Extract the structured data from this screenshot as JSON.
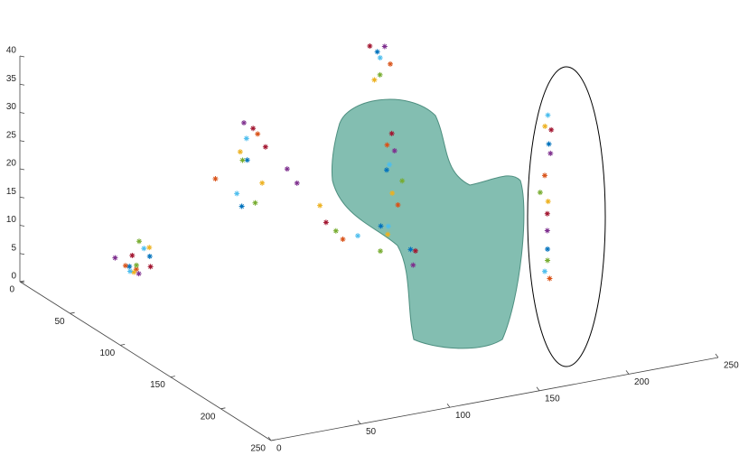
{
  "chart_data": {
    "type": "scatter3d",
    "xlim": [
      0,
      250
    ],
    "ylim": [
      0,
      250
    ],
    "zlim": [
      0,
      40
    ],
    "xticks": [
      0,
      50,
      100,
      150,
      200,
      250
    ],
    "yticks": [
      0,
      50,
      100,
      150,
      200,
      250
    ],
    "zticks": [
      0,
      5,
      10,
      15,
      20,
      25,
      30,
      35,
      40
    ],
    "series": [
      {
        "color": "#0072BD",
        "x": [
          50,
          58,
          207,
          204,
          150,
          160,
          85,
          78,
          165,
          140
        ],
        "y": [
          20,
          26,
          158,
          162,
          98,
          104,
          75,
          82,
          62,
          110
        ],
        "z": [
          2,
          4,
          30,
          12,
          22,
          8,
          25,
          18,
          38,
          14
        ]
      },
      {
        "color": "#D95319",
        "x": [
          45,
          55,
          203,
          208,
          148,
          158,
          88,
          70,
          170,
          130
        ],
        "y": [
          25,
          18,
          161,
          157,
          102,
          95,
          80,
          70,
          66,
          90
        ],
        "z": [
          3,
          1,
          25,
          6,
          27,
          15,
          30,
          22,
          36,
          10
        ]
      },
      {
        "color": "#EDB120",
        "x": [
          60,
          48,
          206,
          202,
          152,
          145,
          76,
          95,
          160,
          120
        ],
        "y": [
          22,
          28,
          159,
          163,
          100,
          108,
          84,
          72,
          68,
          85
        ],
        "z": [
          5,
          2,
          20,
          34,
          18,
          12,
          28,
          20,
          34,
          16
        ]
      },
      {
        "color": "#7E2F8E",
        "x": [
          53,
          42,
          205,
          209,
          155,
          162,
          82,
          100,
          168,
          110
        ],
        "y": [
          24,
          20,
          160,
          156,
          97,
          103,
          77,
          88,
          64,
          80
        ],
        "z": [
          1,
          4,
          15,
          28,
          25,
          5,
          32,
          24,
          39,
          20
        ]
      },
      {
        "color": "#77AC30",
        "x": [
          56,
          50,
          204,
          201,
          157,
          142,
          79,
          90,
          162,
          125
        ],
        "y": [
          19,
          27,
          162,
          160,
          101,
          106,
          81,
          74,
          70,
          92
        ],
        "z": [
          6,
          3,
          10,
          22,
          20,
          9,
          26,
          17,
          35,
          12
        ]
      },
      {
        "color": "#4DBEEE",
        "x": [
          47,
          57,
          207,
          203,
          151,
          147,
          84,
          73,
          166,
          135
        ],
        "y": [
          26,
          22,
          157,
          161,
          99,
          105,
          76,
          86,
          63,
          96
        ],
        "z": [
          2,
          5,
          35,
          8,
          23,
          13,
          29,
          21,
          37,
          11
        ]
      },
      {
        "color": "#A2142F",
        "x": [
          51,
          59,
          205,
          210,
          154,
          165,
          86,
          98,
          158,
          115
        ],
        "y": [
          21,
          25,
          160,
          155,
          96,
          100,
          79,
          70,
          67,
          100
        ],
        "z": [
          4,
          2,
          18,
          32,
          28,
          7,
          31,
          26,
          40,
          15
        ]
      }
    ]
  }
}
